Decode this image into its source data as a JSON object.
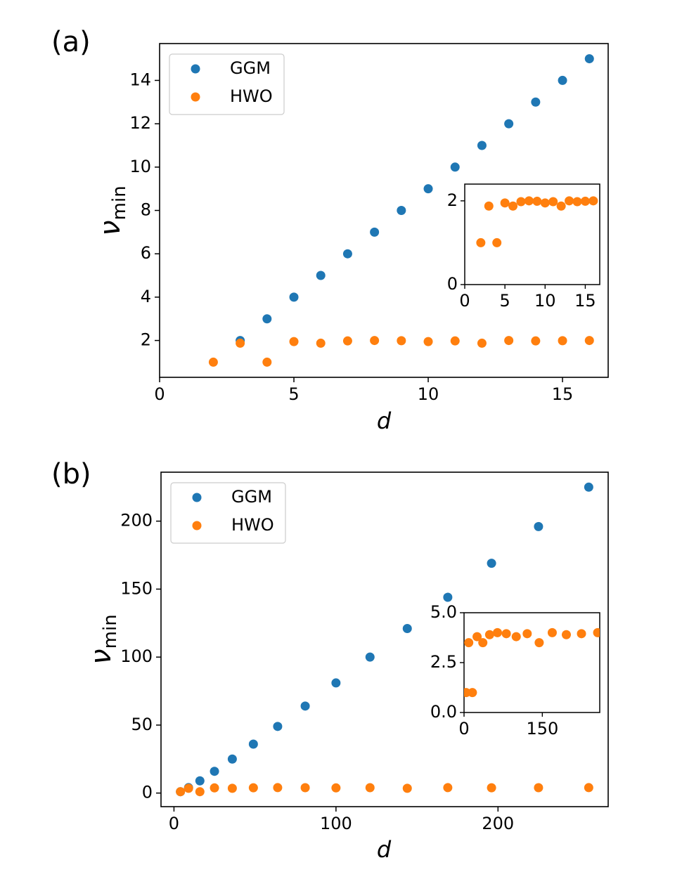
{
  "colors": {
    "ggm": "#1f77b4",
    "hwo": "#ff7f0e",
    "axis": "#000000",
    "legend_border": "#cccccc"
  },
  "chart_data": [
    {
      "id": "a",
      "type": "scatter",
      "panel_label": "(a)",
      "xlabel": "d",
      "ylabel_main": "ν",
      "ylabel_sub": "min",
      "xlim": [
        0,
        16.7
      ],
      "ylim": [
        0.3,
        15.7
      ],
      "xticks": [
        0,
        5,
        10,
        15
      ],
      "xtick_labels": [
        "0",
        "5",
        "10",
        "15"
      ],
      "yticks": [
        2,
        4,
        6,
        8,
        10,
        12,
        14
      ],
      "ytick_labels": [
        "2",
        "4",
        "6",
        "8",
        "10",
        "12",
        "14"
      ],
      "legend_position": "upper-left",
      "series": [
        {
          "name": "GGM",
          "color_key": "ggm",
          "x": [
            3,
            4,
            5,
            6,
            7,
            8,
            9,
            10,
            11,
            12,
            13,
            14,
            15,
            16
          ],
          "y": [
            2,
            3,
            4,
            5,
            6,
            7,
            8,
            9,
            10,
            11,
            12,
            13,
            14,
            15
          ]
        },
        {
          "name": "HWO",
          "color_key": "hwo",
          "x": [
            2,
            3,
            4,
            5,
            6,
            7,
            8,
            9,
            10,
            11,
            12,
            13,
            14,
            15,
            16
          ],
          "y": [
            1,
            1.875,
            1,
            1.95,
            1.875,
            1.98,
            2,
            1.99,
            1.95,
            1.98,
            1.875,
            2,
            1.98,
            1.99,
            2
          ]
        }
      ],
      "inset": {
        "type": "scatter",
        "xlim": [
          0,
          16.8
        ],
        "ylim": [
          0,
          2.4
        ],
        "xticks": [
          0,
          5,
          10,
          15
        ],
        "xtick_labels": [
          "0",
          "5",
          "10",
          "15"
        ],
        "yticks": [
          0,
          2
        ],
        "ytick_labels": [
          "0",
          "2"
        ],
        "series": [
          {
            "name": "HWO",
            "color_key": "hwo",
            "x": [
              2,
              3,
              4,
              5,
              6,
              7,
              8,
              9,
              10,
              11,
              12,
              13,
              14,
              15,
              16
            ],
            "y": [
              1,
              1.875,
              1,
              1.95,
              1.875,
              1.98,
              2,
              1.99,
              1.95,
              1.98,
              1.875,
              2,
              1.98,
              1.99,
              2
            ]
          }
        ]
      }
    },
    {
      "id": "b",
      "type": "scatter",
      "panel_label": "(b)",
      "xlabel": "d",
      "ylabel_main": "ν",
      "ylabel_sub": "min",
      "xlim": [
        -8,
        268
      ],
      "ylim": [
        -10,
        236
      ],
      "xticks": [
        0,
        100,
        200
      ],
      "xtick_labels": [
        "0",
        "100",
        "200"
      ],
      "yticks": [
        0,
        50,
        100,
        150,
        200
      ],
      "ytick_labels": [
        "0",
        "50",
        "100",
        "150",
        "200"
      ],
      "legend_position": "upper-left",
      "series": [
        {
          "name": "GGM",
          "color_key": "ggm",
          "x": [
            4,
            9,
            16,
            25,
            36,
            49,
            64,
            81,
            100,
            121,
            144,
            169,
            196,
            225,
            256
          ],
          "y": [
            1,
            4,
            9,
            16,
            25,
            36,
            49,
            64,
            81,
            100,
            121,
            144,
            169,
            196,
            225
          ]
        },
        {
          "name": "HWO",
          "color_key": "hwo",
          "x": [
            4,
            9,
            16,
            25,
            36,
            49,
            64,
            81,
            100,
            121,
            144,
            169,
            196,
            225,
            256
          ],
          "y": [
            1,
            3.5,
            1,
            3.8,
            3.5,
            3.9,
            4,
            3.95,
            3.8,
            3.95,
            3.5,
            4,
            3.9,
            3.95,
            4
          ]
        }
      ],
      "inset": {
        "type": "scatter",
        "xlim": [
          0,
          260
        ],
        "ylim": [
          0,
          5.0
        ],
        "xticks": [
          0,
          150
        ],
        "xtick_labels": [
          "0",
          "150"
        ],
        "yticks": [
          0,
          2.5,
          5
        ],
        "ytick_labels": [
          "0.0",
          "2.5",
          "5.0"
        ],
        "series": [
          {
            "name": "HWO",
            "color_key": "hwo",
            "x": [
              4,
              9,
              16,
              25,
              36,
              49,
              64,
              81,
              100,
              121,
              144,
              169,
              196,
              225,
              256
            ],
            "y": [
              1,
              3.5,
              1,
              3.8,
              3.5,
              3.9,
              4,
              3.95,
              3.8,
              3.95,
              3.5,
              4,
              3.9,
              3.95,
              4
            ]
          }
        ]
      }
    }
  ]
}
